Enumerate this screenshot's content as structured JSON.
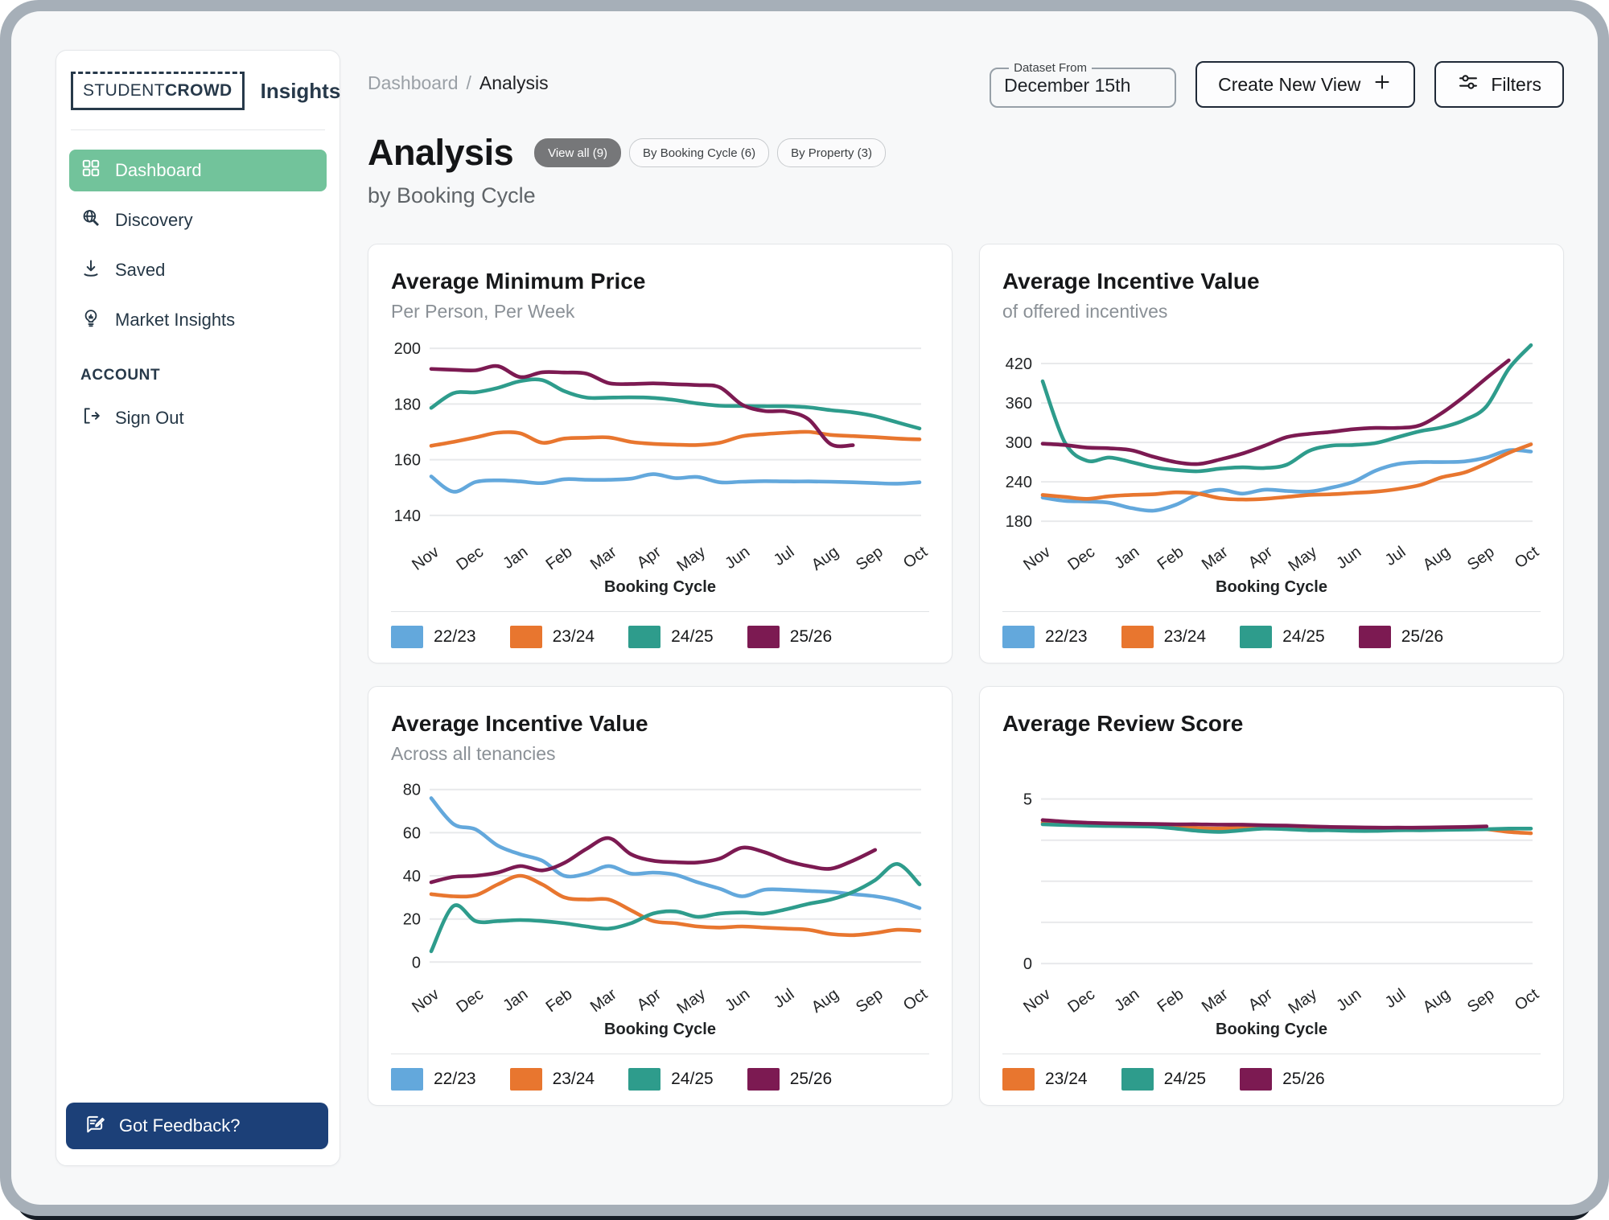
{
  "sidebar": {
    "logo_primary": "STUDENT",
    "logo_bold": "CROWD",
    "logo_suffix": "Insights",
    "items": [
      {
        "label": "Dashboard",
        "active": true
      },
      {
        "label": "Discovery",
        "active": false
      },
      {
        "label": "Saved",
        "active": false
      },
      {
        "label": "Market Insights",
        "active": false
      }
    ],
    "section_label": "ACCOUNT",
    "sign_out_label": "Sign Out",
    "feedback_button": "Got Feedback?"
  },
  "header": {
    "breadcrumb": [
      "Dashboard",
      "Analysis"
    ],
    "dataset_from": {
      "label": "Dataset From",
      "value": "December 15th"
    },
    "create_view_label": "Create New View",
    "filters_label": "Filters"
  },
  "page": {
    "title": "Analysis",
    "subtitle": "by Booking Cycle",
    "pills": [
      {
        "label": "View all (9)",
        "active": true
      },
      {
        "label": "By Booking Cycle (6)",
        "active": false
      },
      {
        "label": "By Property (3)",
        "active": false
      }
    ]
  },
  "colors": {
    "series_22_23": "#63a8dc",
    "series_23_24": "#e8762f",
    "series_24_25": "#2e9c8c",
    "series_25_26": "#7c1a52",
    "nav_active_green": "#72c39b",
    "feedback_navy": "#1c4078",
    "frame_gray": "#a6afb8"
  },
  "chart_data": [
    {
      "type": "line",
      "title": "Average Minimum Price",
      "subtitle": "Per Person, Per Week",
      "xlabel": "Booking Cycle",
      "x": [
        "Nov",
        "Dec",
        "Jan",
        "Feb",
        "Mar",
        "Apr",
        "May",
        "Jun",
        "Jul",
        "Aug",
        "Sep",
        "Oct"
      ],
      "ylim": [
        136.5,
        203.5
      ],
      "grid": [
        140,
        160,
        180,
        200
      ],
      "ytick_labels": [
        140,
        160,
        180,
        200
      ],
      "legend_position": "bottom",
      "series": [
        {
          "name": "22/23",
          "color": "#63a8dc",
          "values": [
            154,
            148.5,
            152,
            152.6,
            152.2,
            151.6,
            153,
            152.8,
            152.8,
            153.2,
            154.8,
            153.4,
            153.8,
            151.9,
            152.1,
            152.3,
            152.2,
            152.2,
            152.1,
            151.9,
            151.6,
            151.4,
            151.9
          ]
        },
        {
          "name": "23/24",
          "color": "#e8762f",
          "values": [
            165,
            166.4,
            168,
            169.7,
            169.5,
            166.1,
            167.6,
            167.9,
            168,
            166.4,
            165.7,
            165.4,
            165.3,
            166.1,
            168.4,
            169.2,
            169.7,
            170,
            168.9,
            168.5,
            168.1,
            167.6,
            167.3
          ]
        },
        {
          "name": "24/25",
          "color": "#2e9c8c",
          "values": [
            178.6,
            183.9,
            184.2,
            185.8,
            188.2,
            188.6,
            184.6,
            182.3,
            182.3,
            182.4,
            182.2,
            181.4,
            180.2,
            179.4,
            179.3,
            179.2,
            179.2,
            178.8,
            177.8,
            177,
            175.6,
            173.4,
            171.2
          ]
        },
        {
          "name": "25/26",
          "color": "#7c1a52",
          "values": [
            192.6,
            192.3,
            192.1,
            193.6,
            189.7,
            191.4,
            191.3,
            190.9,
            187.5,
            187.2,
            187.4,
            187.1,
            186.8,
            186,
            179.8,
            177.5,
            177.3,
            174.5,
            165.6,
            165.2,
            null,
            null,
            null
          ]
        }
      ]
    },
    {
      "type": "line",
      "title": "Average Incentive Value",
      "subtitle": "of offered incentives",
      "xlabel": "Booking Cycle",
      "x": [
        "Nov",
        "Dec",
        "Jan",
        "Feb",
        "Mar",
        "Apr",
        "May",
        "Jun",
        "Jul",
        "Aug",
        "Sep",
        "Oct"
      ],
      "ylim": [
        174,
        458
      ],
      "grid": [
        180,
        240,
        300,
        360,
        420
      ],
      "ytick_labels": [
        180,
        240,
        300,
        360,
        420
      ],
      "legend_position": "bottom",
      "series": [
        {
          "name": "22/23",
          "color": "#63a8dc",
          "values": [
            216,
            211,
            210,
            208,
            200,
            196,
            205,
            221,
            228,
            222,
            228,
            226,
            225,
            231,
            240,
            257,
            267,
            270,
            270,
            271,
            277,
            288,
            286
          ]
        },
        {
          "name": "23/24",
          "color": "#e8762f",
          "values": [
            220,
            217,
            214,
            218,
            220,
            221,
            224,
            222,
            215,
            213,
            214,
            217,
            220,
            221,
            223,
            225,
            229,
            235,
            247,
            254,
            268,
            284,
            297
          ]
        },
        {
          "name": "24/25",
          "color": "#2e9c8c",
          "values": [
            393,
            300,
            272,
            277,
            270,
            262,
            258,
            256,
            260,
            262,
            261,
            266,
            287,
            295,
            296,
            299,
            308,
            317,
            323,
            334,
            355,
            412,
            448
          ]
        },
        {
          "name": "25/26",
          "color": "#7c1a52",
          "values": [
            298,
            296,
            292,
            291,
            288,
            278,
            270,
            267,
            274,
            283,
            295,
            308,
            313,
            316,
            320,
            322,
            322,
            326,
            345,
            370,
            398,
            425,
            null
          ]
        }
      ]
    },
    {
      "type": "line",
      "title": "Average Incentive Value",
      "subtitle": "Across all tenancies",
      "xlabel": "Booking Cycle",
      "x": [
        "Nov",
        "Dec",
        "Jan",
        "Feb",
        "Mar",
        "Apr",
        "May",
        "Jun",
        "Jul",
        "Aug",
        "Sep",
        "Oct"
      ],
      "ylim": [
        -2.5,
        84
      ],
      "grid": [
        0,
        20,
        40,
        60,
        80
      ],
      "ytick_labels": [
        0,
        20,
        40,
        60,
        80
      ],
      "legend_position": "bottom",
      "series": [
        {
          "name": "22/23",
          "color": "#63a8dc",
          "values": [
            76,
            64,
            61.5,
            54,
            50,
            47,
            40,
            41,
            44.5,
            41,
            41.5,
            40.5,
            37,
            34,
            30.5,
            33.5,
            33.5,
            33,
            32.5,
            31.5,
            30.5,
            28.5,
            25
          ]
        },
        {
          "name": "23/24",
          "color": "#e8762f",
          "values": [
            31.5,
            30.5,
            31,
            36,
            40,
            36,
            30,
            29,
            29,
            24,
            19,
            18,
            16.5,
            16,
            16.5,
            16,
            15.5,
            15,
            13,
            12.5,
            13.5,
            15,
            14.5
          ]
        },
        {
          "name": "24/25",
          "color": "#2e9c8c",
          "values": [
            5,
            26,
            19,
            19,
            19.5,
            19,
            18,
            16.5,
            15.5,
            18,
            22.5,
            23.5,
            21,
            22.5,
            23,
            22.5,
            24.5,
            27,
            29,
            32.5,
            38,
            45.5,
            36
          ]
        },
        {
          "name": "25/26",
          "color": "#7c1a52",
          "values": [
            37,
            39.5,
            40,
            41.5,
            44.5,
            42.5,
            46,
            52.5,
            57.5,
            50,
            47,
            46.3,
            46.2,
            48,
            53,
            51,
            47,
            44.5,
            43.3,
            47,
            52,
            null,
            null
          ]
        }
      ]
    },
    {
      "type": "line",
      "title": "Average Review Score",
      "subtitle": "",
      "xlabel": "Booking Cycle",
      "x": [
        "Nov",
        "Dec",
        "Jan",
        "Feb",
        "Mar",
        "Apr",
        "May",
        "Jun",
        "Jul",
        "Aug",
        "Sep",
        "Oct"
      ],
      "ylim": [
        -0.12,
        5.55
      ],
      "grid": [
        0,
        1.25,
        2.5,
        3.75,
        5
      ],
      "ytick_labels": [
        0,
        5
      ],
      "legend_position": "bottom",
      "series": [
        {
          "name": "23/24",
          "color": "#e8762f",
          "values": [
            4.28,
            4.25,
            4.23,
            4.21,
            4.2,
            4.19,
            4.17,
            4.12,
            4.1,
            4.14,
            4.13,
            4.11,
            4.1,
            4.1,
            4.09,
            4.08,
            4.1,
            4.1,
            4.1,
            4.1,
            4.08,
            4.0,
            3.96
          ]
        },
        {
          "name": "24/25",
          "color": "#2e9c8c",
          "values": [
            4.23,
            4.21,
            4.19,
            4.18,
            4.17,
            4.16,
            4.1,
            4.03,
            4.0,
            4.05,
            4.1,
            4.08,
            4.05,
            4.05,
            4.03,
            4.03,
            4.05,
            4.05,
            4.06,
            4.07,
            4.08,
            4.1,
            4.1
          ]
        },
        {
          "name": "25/26",
          "color": "#7c1a52",
          "values": [
            4.36,
            4.31,
            4.28,
            4.26,
            4.25,
            4.24,
            4.23,
            4.23,
            4.22,
            4.22,
            4.2,
            4.19,
            4.17,
            4.15,
            4.14,
            4.13,
            4.13,
            4.13,
            4.14,
            4.15,
            4.17,
            null,
            null
          ]
        }
      ]
    }
  ]
}
